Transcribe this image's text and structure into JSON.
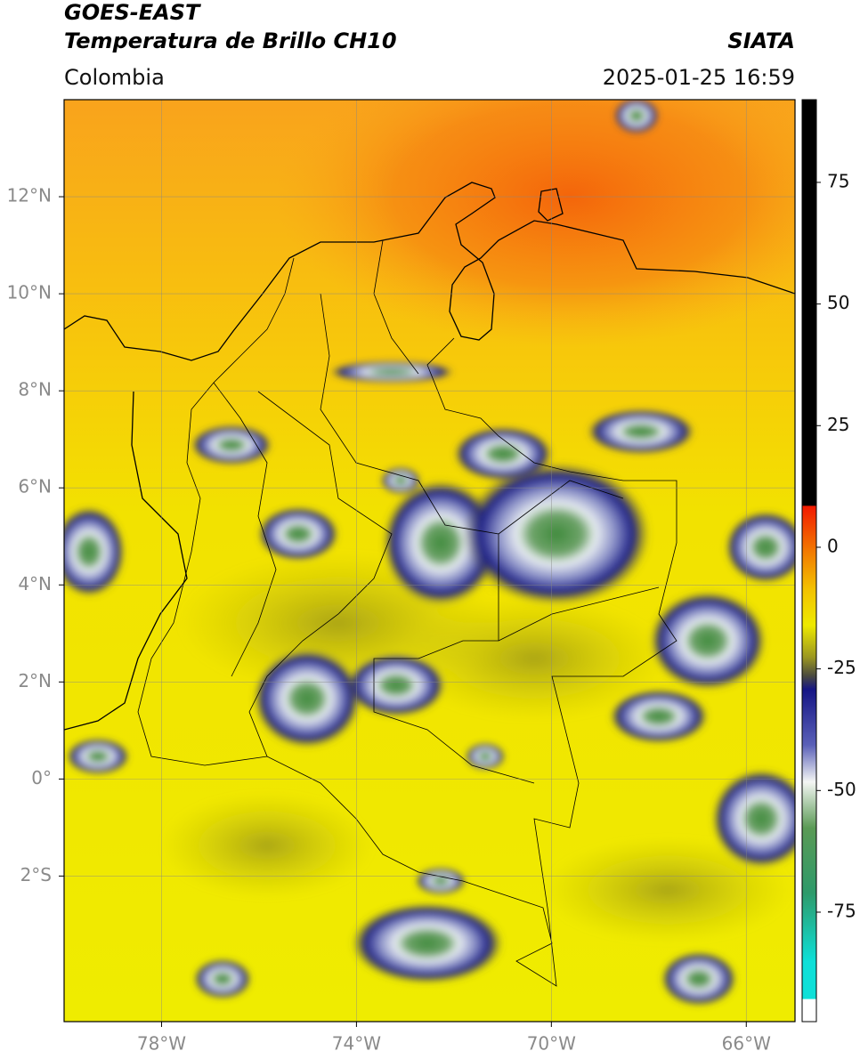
{
  "header": {
    "title": "GOES-EAST",
    "subtitle": "Temperatura de Brillo CH10",
    "region": "Colombia",
    "agency": "SIATA",
    "datetime": "2025-01-25 16:59"
  },
  "map": {
    "xlim": [
      -80,
      -65
    ],
    "ylim": [
      -5,
      14
    ],
    "grid": true,
    "xticks": [
      {
        "value": -78,
        "label": "78°W"
      },
      {
        "value": -74,
        "label": "74°W"
      },
      {
        "value": -70,
        "label": "70°W"
      },
      {
        "value": -66,
        "label": "66°W"
      }
    ],
    "yticks": [
      {
        "value": 12,
        "label": "12°N"
      },
      {
        "value": 10,
        "label": "10°N"
      },
      {
        "value": 8,
        "label": "8°N"
      },
      {
        "value": 6,
        "label": "6°N"
      },
      {
        "value": 4,
        "label": "4°N"
      },
      {
        "value": 2,
        "label": "2°N"
      },
      {
        "value": 0,
        "label": "0°"
      },
      {
        "value": -2,
        "label": "2°S"
      }
    ]
  },
  "colorbar": {
    "lim": [
      -97.5,
      92
    ],
    "ticks": [
      75,
      50,
      25,
      0,
      -25,
      -50,
      -75
    ]
  }
}
